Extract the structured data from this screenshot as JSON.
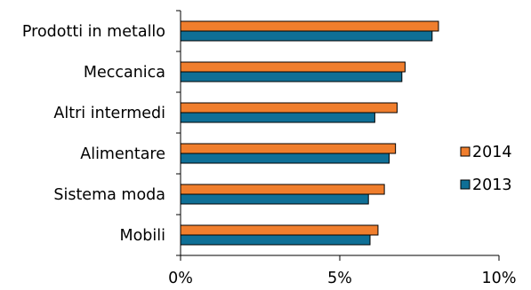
{
  "chart_data": {
    "type": "bar",
    "orientation": "horizontal",
    "categories": [
      "Prodotti in metallo",
      "Meccanica",
      "Altri intermedi",
      "Alimentare",
      "Sistema moda",
      "Mobili"
    ],
    "series": [
      {
        "name": "2014",
        "color": "#F07E2D",
        "values": [
          8.1,
          7.05,
          6.8,
          6.75,
          6.4,
          6.2
        ]
      },
      {
        "name": "2013",
        "color": "#0F6F96",
        "values": [
          7.9,
          6.95,
          6.1,
          6.55,
          5.9,
          5.95
        ]
      }
    ],
    "xlim": [
      0,
      10
    ],
    "xticks": [
      {
        "value": 0,
        "label": "0%"
      },
      {
        "value": 5,
        "label": "5%"
      },
      {
        "value": 10,
        "label": "10%"
      }
    ],
    "legend": {
      "placement": "right",
      "entries": [
        "2014",
        "2013"
      ]
    },
    "grid": false
  }
}
